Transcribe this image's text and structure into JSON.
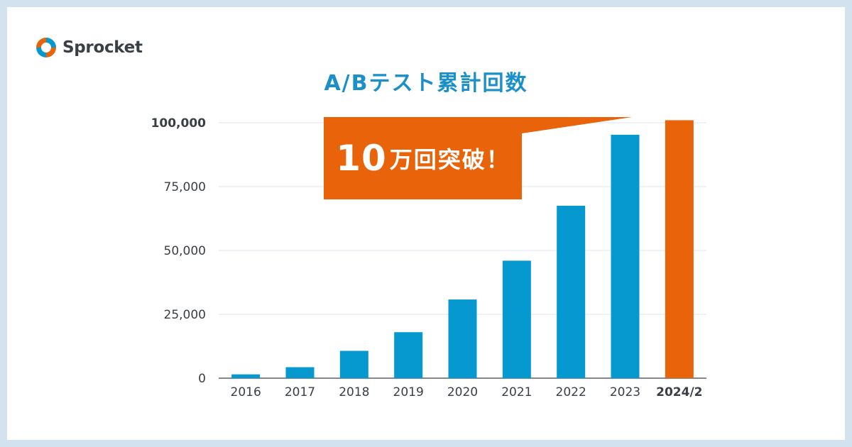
{
  "brand": {
    "name": "Sprocket"
  },
  "colors": {
    "bar": "#0599cf",
    "highlight": "#e8630a",
    "title": "#1a8fca",
    "grid": "#dde6ee",
    "axis_text": "#3a3f45",
    "background": "#d3e2ef"
  },
  "callout": {
    "number": "10",
    "text": "万回突破！"
  },
  "chart_data": {
    "type": "bar",
    "title": "A/Bテスト累計回数",
    "categories": [
      "2016",
      "2017",
      "2018",
      "2019",
      "2020",
      "2021",
      "2022",
      "2023",
      "2024/2"
    ],
    "values": [
      1500,
      4300,
      10700,
      18000,
      30800,
      46000,
      67500,
      95300,
      101000
    ],
    "highlight_category": "2024/2",
    "ylim": [
      0,
      100000
    ],
    "yticks": [
      "0",
      "25,000",
      "50,000",
      "75,000",
      "100,000"
    ],
    "ytick_values": [
      0,
      25000,
      50000,
      75000,
      100000
    ],
    "grid": true,
    "xlabel": "",
    "ylabel": ""
  }
}
